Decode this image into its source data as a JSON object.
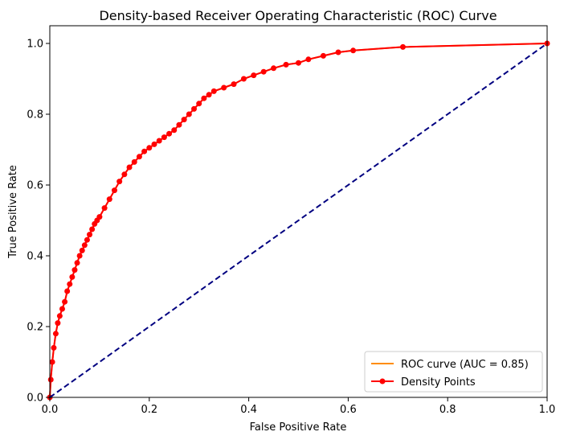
{
  "chart_data": {
    "type": "line",
    "title": "Density-based Receiver Operating Characteristic (ROC) Curve",
    "xlabel": "False Positive Rate",
    "ylabel": "True Positive Rate",
    "xlim": [
      0.0,
      1.0
    ],
    "ylim": [
      0.0,
      1.05
    ],
    "xticks": [
      "0.0",
      "0.2",
      "0.4",
      "0.6",
      "0.8",
      "1.0"
    ],
    "yticks": [
      "0.0",
      "0.2",
      "0.4",
      "0.6",
      "0.8",
      "1.0"
    ],
    "grid": false,
    "legend_position": "lower-right",
    "series": [
      {
        "name": "ROC curve (AUC = 0.85)",
        "style": "line",
        "color": "#ff8c00",
        "x": [
          0.0,
          0.002,
          0.005,
          0.008,
          0.012,
          0.016,
          0.02,
          0.025,
          0.03,
          0.035,
          0.04,
          0.045,
          0.05,
          0.055,
          0.06,
          0.065,
          0.07,
          0.075,
          0.08,
          0.085,
          0.09,
          0.095,
          0.1,
          0.11,
          0.12,
          0.13,
          0.14,
          0.15,
          0.16,
          0.17,
          0.18,
          0.19,
          0.2,
          0.21,
          0.22,
          0.23,
          0.24,
          0.25,
          0.26,
          0.27,
          0.28,
          0.29,
          0.3,
          0.31,
          0.32,
          0.33,
          0.35,
          0.37,
          0.39,
          0.41,
          0.43,
          0.45,
          0.475,
          0.5,
          0.52,
          0.55,
          0.58,
          0.61,
          0.71,
          1.0
        ],
        "y": [
          0.0,
          0.05,
          0.1,
          0.14,
          0.18,
          0.21,
          0.23,
          0.25,
          0.27,
          0.3,
          0.32,
          0.34,
          0.36,
          0.38,
          0.4,
          0.415,
          0.43,
          0.445,
          0.46,
          0.475,
          0.49,
          0.5,
          0.51,
          0.535,
          0.56,
          0.585,
          0.61,
          0.63,
          0.65,
          0.665,
          0.68,
          0.695,
          0.705,
          0.715,
          0.725,
          0.735,
          0.745,
          0.755,
          0.77,
          0.785,
          0.8,
          0.815,
          0.83,
          0.845,
          0.855,
          0.865,
          0.875,
          0.885,
          0.9,
          0.91,
          0.92,
          0.93,
          0.94,
          0.945,
          0.955,
          0.965,
          0.975,
          0.98,
          0.99,
          1.0
        ]
      },
      {
        "name": "Density Points",
        "style": "line-markers",
        "color": "#ff0000",
        "x": [
          0.0,
          0.002,
          0.005,
          0.008,
          0.012,
          0.016,
          0.02,
          0.025,
          0.03,
          0.035,
          0.04,
          0.045,
          0.05,
          0.055,
          0.06,
          0.065,
          0.07,
          0.075,
          0.08,
          0.085,
          0.09,
          0.095,
          0.1,
          0.11,
          0.12,
          0.13,
          0.14,
          0.15,
          0.16,
          0.17,
          0.18,
          0.19,
          0.2,
          0.21,
          0.22,
          0.23,
          0.24,
          0.25,
          0.26,
          0.27,
          0.28,
          0.29,
          0.3,
          0.31,
          0.32,
          0.33,
          0.35,
          0.37,
          0.39,
          0.41,
          0.43,
          0.45,
          0.475,
          0.5,
          0.52,
          0.55,
          0.58,
          0.61,
          0.71,
          1.0
        ],
        "y": [
          0.0,
          0.05,
          0.1,
          0.14,
          0.18,
          0.21,
          0.23,
          0.25,
          0.27,
          0.3,
          0.32,
          0.34,
          0.36,
          0.38,
          0.4,
          0.415,
          0.43,
          0.445,
          0.46,
          0.475,
          0.49,
          0.5,
          0.51,
          0.535,
          0.56,
          0.585,
          0.61,
          0.63,
          0.65,
          0.665,
          0.68,
          0.695,
          0.705,
          0.715,
          0.725,
          0.735,
          0.745,
          0.755,
          0.77,
          0.785,
          0.8,
          0.815,
          0.83,
          0.845,
          0.855,
          0.865,
          0.875,
          0.885,
          0.9,
          0.91,
          0.92,
          0.93,
          0.94,
          0.945,
          0.955,
          0.965,
          0.975,
          0.98,
          0.99,
          1.0
        ]
      },
      {
        "name": "",
        "style": "dashed",
        "color": "#000080",
        "x": [
          0.0,
          1.0
        ],
        "y": [
          0.0,
          1.0
        ]
      }
    ]
  }
}
